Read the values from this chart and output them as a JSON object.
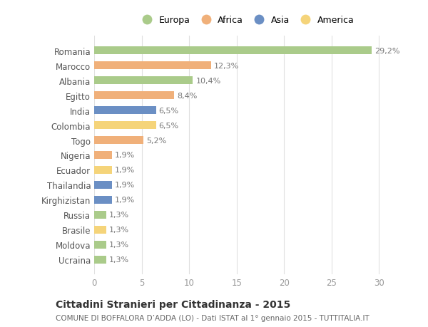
{
  "countries": [
    "Romania",
    "Marocco",
    "Albania",
    "Egitto",
    "India",
    "Colombia",
    "Togo",
    "Nigeria",
    "Ecuador",
    "Thailandia",
    "Kirghizistan",
    "Russia",
    "Brasile",
    "Moldova",
    "Ucraina"
  ],
  "values": [
    29.2,
    12.3,
    10.4,
    8.4,
    6.5,
    6.5,
    5.2,
    1.9,
    1.9,
    1.9,
    1.9,
    1.3,
    1.3,
    1.3,
    1.3
  ],
  "labels": [
    "29,2%",
    "12,3%",
    "10,4%",
    "8,4%",
    "6,5%",
    "6,5%",
    "5,2%",
    "1,9%",
    "1,9%",
    "1,9%",
    "1,9%",
    "1,3%",
    "1,3%",
    "1,3%",
    "1,3%"
  ],
  "colors": [
    "#aacb8a",
    "#f0b07a",
    "#aacb8a",
    "#f0b07a",
    "#6b8fc4",
    "#f5d47a",
    "#f0b07a",
    "#f0b07a",
    "#f5d47a",
    "#6b8fc4",
    "#6b8fc4",
    "#aacb8a",
    "#f5d47a",
    "#aacb8a",
    "#aacb8a"
  ],
  "legend_labels": [
    "Europa",
    "Africa",
    "Asia",
    "America"
  ],
  "legend_colors": [
    "#aacb8a",
    "#f0b07a",
    "#6b8fc4",
    "#f5d47a"
  ],
  "title": "Cittadini Stranieri per Cittadinanza - 2015",
  "subtitle": "COMUNE DI BOFFALORA D’ADDA (LO) - Dati ISTAT al 1° gennaio 2015 - TUTTITALIA.IT",
  "xlim": [
    0,
    32
  ],
  "xticks": [
    0,
    5,
    10,
    15,
    20,
    25,
    30
  ],
  "background_color": "#ffffff",
  "grid_color": "#e0e0e0",
  "bar_height": 0.55,
  "label_fontsize": 8,
  "tick_fontsize": 8.5,
  "label_color": "#777777",
  "ytick_color": "#555555"
}
